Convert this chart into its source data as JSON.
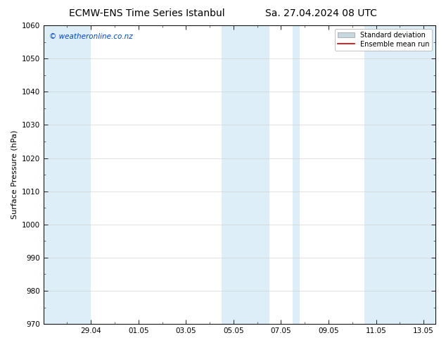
{
  "title_left": "ECMW-ENS Time Series Istanbul",
  "title_right": "Sa. 27.04.2024 08 UTC",
  "ylabel": "Surface Pressure (hPa)",
  "ylim": [
    970,
    1060
  ],
  "yticks": [
    970,
    980,
    990,
    1000,
    1010,
    1020,
    1030,
    1040,
    1050,
    1060
  ],
  "xlim_start": 0,
  "xlim_end": 16.5,
  "xtick_labels": [
    "29.04",
    "01.05",
    "03.05",
    "05.05",
    "07.05",
    "09.05",
    "11.05",
    "13.05"
  ],
  "xtick_positions": [
    2,
    4,
    6,
    8,
    10,
    12,
    14,
    16
  ],
  "shaded_bands": [
    {
      "x_start": 0.0,
      "x_end": 2.0,
      "color": "#ddeef8"
    },
    {
      "x_start": 7.5,
      "x_end": 9.5,
      "color": "#ddeef8"
    },
    {
      "x_start": 10.5,
      "x_end": 10.8,
      "color": "#ddeef8"
    },
    {
      "x_start": 13.5,
      "x_end": 16.5,
      "color": "#ddeef8"
    }
  ],
  "watermark": "© weatheronline.co.nz",
  "watermark_color": "#0044cc",
  "legend_labels": [
    "Standard deviation",
    "Ensemble mean run"
  ],
  "legend_patch_color": "#c8d8e0",
  "legend_line_color": "#cc0000",
  "bg_color": "#ffffff",
  "plot_bg_color": "#ffffff",
  "grid_color": "#cccccc",
  "title_fontsize": 10,
  "label_fontsize": 8,
  "tick_fontsize": 7.5,
  "watermark_fontsize": 7.5,
  "legend_fontsize": 7
}
